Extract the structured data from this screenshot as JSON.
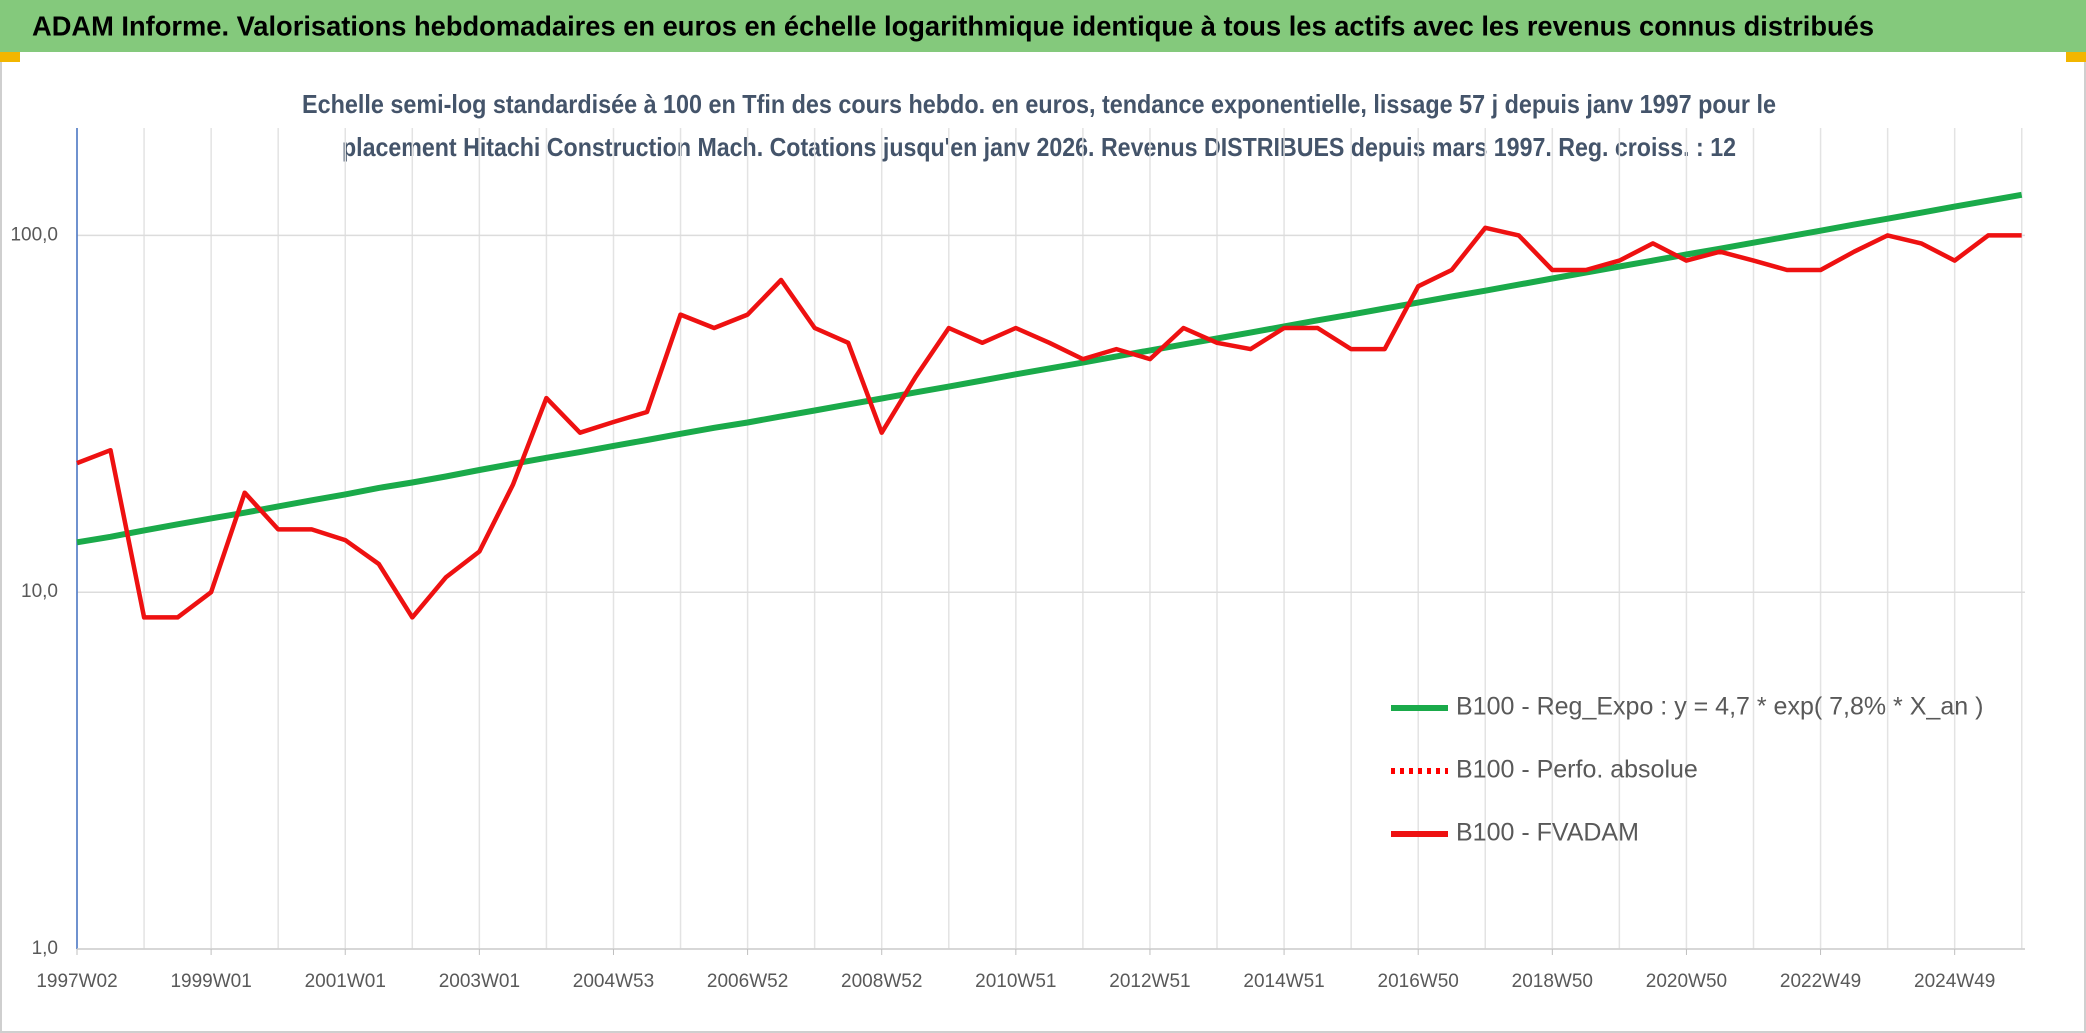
{
  "chart_data": {
    "type": "line",
    "title": "ADAM Informe. Valorisations hebdomadaires en euros en échelle logarithmique identique à tous les actifs avec les revenus connus distribués",
    "subtitle": [
      "Echelle semi-log standardisée à 100 en Tfin des cours hebdo. en euros, tendance exponentielle, lissage 57 j depuis janv 1997 pour le",
      "placement Hitachi Construction Mach. Cotations jusqu'en janv 2026. Revenus DISTRIBUES depuis mars 1997. Reg. croiss. : 12"
    ],
    "categories": [
      "1997W02",
      null,
      null,
      null,
      "1999W01",
      null,
      null,
      null,
      "2001W01",
      null,
      null,
      null,
      "2003W01",
      null,
      null,
      null,
      "2004W53",
      null,
      null,
      null,
      "2006W52",
      null,
      null,
      null,
      "2008W52",
      null,
      null,
      null,
      "2010W51",
      null,
      null,
      null,
      "2012W51",
      null,
      null,
      null,
      "2014W51",
      null,
      null,
      null,
      "2016W50",
      null,
      null,
      null,
      "2018W50",
      null,
      null,
      null,
      "2020W50",
      null,
      null,
      null,
      "2022W49",
      null,
      null,
      null,
      "2024W49",
      null,
      null
    ],
    "series": [
      {
        "name": "B100 - Reg_Expo : y = 4,7 * exp( 7,8% *  X_an )",
        "color": "#1aaa4a",
        "dash": "solid",
        "values": [
          13.8,
          14.3,
          14.9,
          15.5,
          16.1,
          16.7,
          17.4,
          18.1,
          18.8,
          19.6,
          20.3,
          21.1,
          22.0,
          22.9,
          23.8,
          24.7,
          25.7,
          26.7,
          27.8,
          28.9,
          29.9,
          31.1,
          32.3,
          33.6,
          34.9,
          36.3,
          37.7,
          39.2,
          40.8,
          42.4,
          44.0,
          45.8,
          47.6,
          49.5,
          51.4,
          53.4,
          55.6,
          57.8,
          60.0,
          62.4,
          64.8,
          67.4,
          70.0,
          72.8,
          75.7,
          78.7,
          81.8,
          85.0,
          88.4,
          91.8,
          95.4,
          99.2,
          103.1,
          107.2,
          111.4,
          115.8,
          120.4,
          125.1,
          130.0
        ]
      },
      {
        "name": "B100 - Perfo. absolue",
        "color": "#ff0000",
        "dash": "dotted",
        "values": [
          null,
          null,
          null,
          null,
          null,
          null,
          null,
          null,
          null,
          null,
          null,
          null,
          null,
          null,
          null,
          null,
          null,
          null,
          null,
          null,
          null,
          null,
          null,
          null,
          null,
          null,
          null,
          null,
          null,
          null,
          null,
          null,
          null,
          null,
          null,
          null,
          null,
          null,
          null,
          null,
          null,
          null,
          null,
          null,
          null,
          null,
          null,
          null,
          null,
          null,
          null,
          null,
          null,
          null,
          null,
          null,
          null,
          null,
          null
        ]
      },
      {
        "name": "B100 - FVADAM",
        "color": "#ee1111",
        "dash": "solid",
        "values": [
          23,
          25,
          8.5,
          8.5,
          10,
          19,
          15,
          15,
          14,
          12,
          8.5,
          11,
          13,
          20,
          35,
          28,
          30,
          32,
          60,
          55,
          60,
          75,
          55,
          50,
          28,
          40,
          55,
          50,
          55,
          50,
          45,
          48,
          45,
          55,
          50,
          48,
          55,
          55,
          48,
          48,
          72,
          80,
          105,
          100,
          80,
          80,
          85,
          95,
          85,
          90,
          85,
          80,
          80,
          90,
          100,
          95,
          85,
          100,
          100
        ]
      }
    ],
    "ylim": [
      1,
      200
    ],
    "yticks": [
      {
        "value": 1,
        "label": "1,0"
      },
      {
        "value": 10,
        "label": "10,0"
      },
      {
        "value": 100,
        "label": "100,0"
      }
    ],
    "log_scale": true,
    "grid": true
  }
}
